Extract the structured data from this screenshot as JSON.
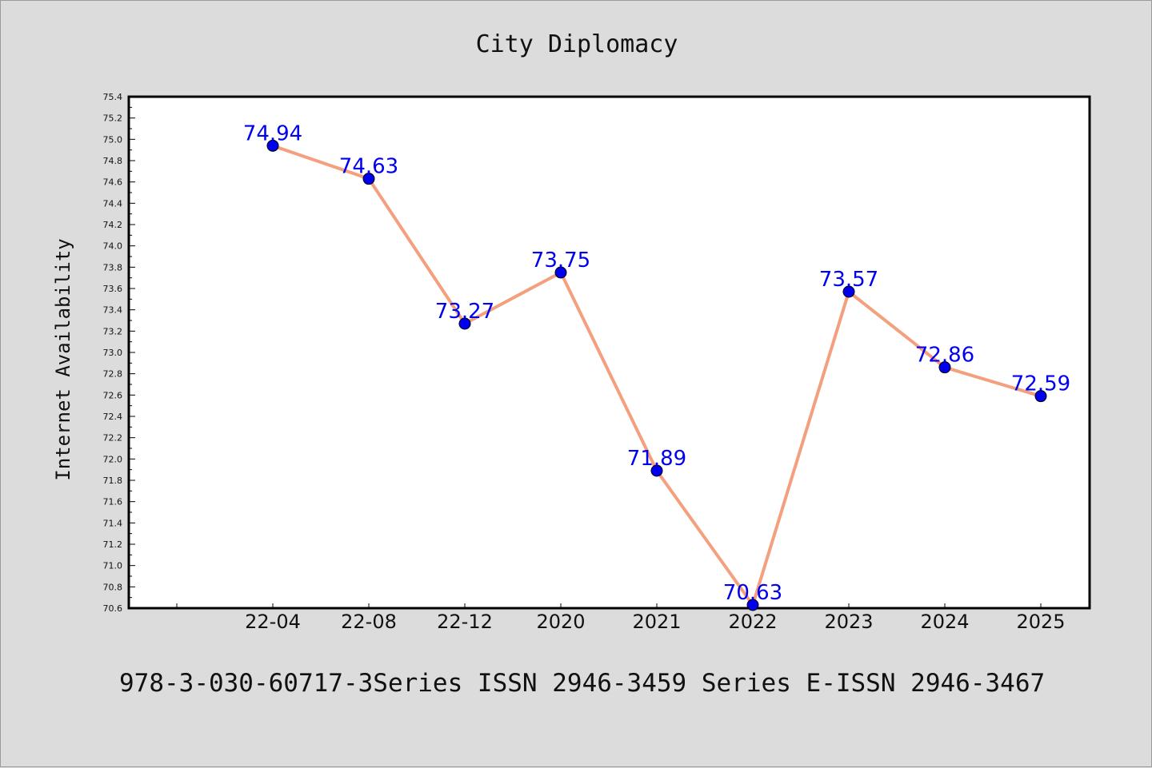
{
  "chart_data": {
    "type": "line",
    "title": "City Diplomacy",
    "xlabel": "",
    "ylabel": "Internet Availability",
    "categories": [
      "22-04",
      "22-08",
      "22-12",
      "2020",
      "2021",
      "2022",
      "2023",
      "2024",
      "2025"
    ],
    "series": [
      {
        "values": [
          74.94,
          74.63,
          73.27,
          73.75,
          71.89,
          70.63,
          73.57,
          72.86,
          72.59
        ]
      }
    ],
    "data_labels": [
      "74.94",
      "74.63",
      "73.27",
      "73.75",
      "71.89",
      "70.63",
      "73.57",
      "72.86",
      "72.59"
    ],
    "ylim": [
      70.6,
      75.4
    ],
    "yticks": [
      "70.6",
      "70.8",
      "71.0",
      "71.2",
      "71.4",
      "71.6",
      "71.8",
      "72.0",
      "72.2",
      "72.4",
      "72.6",
      "72.8",
      "73.0",
      "73.2",
      "73.4",
      "73.6",
      "73.8",
      "74.0",
      "74.2",
      "74.4",
      "74.6",
      "74.8",
      "75.0",
      "75.2",
      "75.4"
    ],
    "grid": false,
    "legend": "none",
    "colors": {
      "line": "#f4a07e",
      "marker": "#0000ee",
      "label": "#0000ee",
      "plot_bg": "#ffffff",
      "page_bg": "#dcdcdc"
    }
  },
  "footer": {
    "text": "978-3-030-60717-3Series ISSN 2946-3459 Series E-ISSN 2946-3467"
  }
}
